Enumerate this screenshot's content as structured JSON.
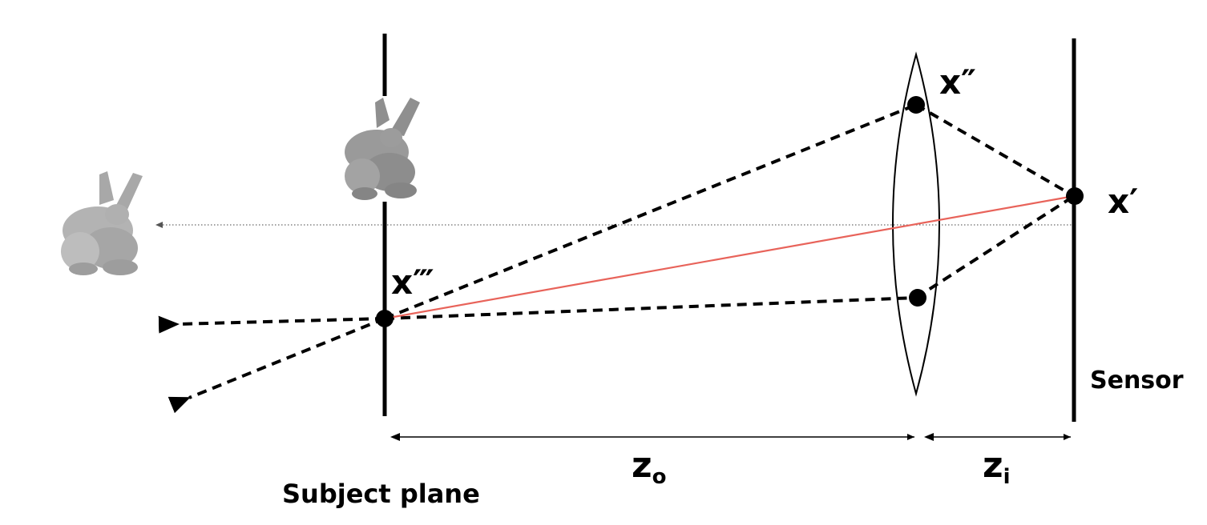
{
  "labels": {
    "x_lens_top": "x″",
    "x_sensor": "x′",
    "x_subject": "x‴",
    "sensor": "Sensor",
    "subject_plane": "Subject plane",
    "z_object_main": "z",
    "z_object_sub": "o",
    "z_image_main": "z",
    "z_image_sub": "i"
  },
  "colors": {
    "chief_ray": "#e8635a",
    "ink": "#000000",
    "bunny": "#9a9a9a"
  },
  "icons": {
    "bunny_far": "bunny-icon",
    "bunny_plane": "bunny-icon"
  }
}
